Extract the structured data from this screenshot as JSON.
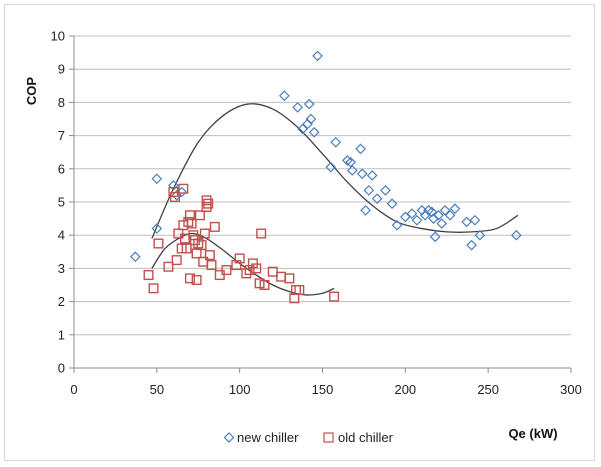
{
  "chart_data": {
    "type": "scatter",
    "title": "",
    "xlabel": "Qe (kW)",
    "ylabel": "COP",
    "xlim": [
      0,
      300
    ],
    "ylim": [
      0,
      10
    ],
    "x_ticks": [
      0,
      50,
      100,
      150,
      200,
      250,
      300
    ],
    "y_ticks": [
      0,
      1,
      2,
      3,
      4,
      5,
      6,
      7,
      8,
      9,
      10
    ],
    "grid": "horizontal",
    "legend_position": "bottom",
    "series": [
      {
        "name": "new chiller",
        "marker": "diamond",
        "color": "#4a7ebb",
        "points": [
          [
            37,
            3.35
          ],
          [
            50,
            4.2
          ],
          [
            50,
            5.7
          ],
          [
            60,
            5.5
          ],
          [
            62,
            5.2
          ],
          [
            65,
            5.3
          ],
          [
            127,
            8.2
          ],
          [
            135,
            7.85
          ],
          [
            138,
            7.2
          ],
          [
            141,
            7.35
          ],
          [
            142,
            7.95
          ],
          [
            143,
            7.5
          ],
          [
            145,
            7.1
          ],
          [
            147,
            9.4
          ],
          [
            155,
            6.05
          ],
          [
            158,
            6.8
          ],
          [
            165,
            6.25
          ],
          [
            167,
            6.2
          ],
          [
            168,
            5.95
          ],
          [
            173,
            6.6
          ],
          [
            174,
            5.85
          ],
          [
            176,
            4.75
          ],
          [
            178,
            5.35
          ],
          [
            180,
            5.8
          ],
          [
            183,
            5.1
          ],
          [
            188,
            5.35
          ],
          [
            192,
            4.95
          ],
          [
            195,
            4.3
          ],
          [
            200,
            4.55
          ],
          [
            204,
            4.65
          ],
          [
            207,
            4.45
          ],
          [
            210,
            4.75
          ],
          [
            212,
            4.6
          ],
          [
            214,
            4.75
          ],
          [
            216,
            4.7
          ],
          [
            217,
            4.5
          ],
          [
            218,
            3.95
          ],
          [
            220,
            4.6
          ],
          [
            222,
            4.35
          ],
          [
            224,
            4.75
          ],
          [
            227,
            4.6
          ],
          [
            230,
            4.8
          ],
          [
            237,
            4.4
          ],
          [
            240,
            3.7
          ],
          [
            242,
            4.45
          ],
          [
            245,
            4.0
          ],
          [
            267,
            4.0
          ]
        ]
      },
      {
        "name": "old chiller",
        "marker": "square",
        "color": "#c0504d",
        "points": [
          [
            45,
            2.8
          ],
          [
            48,
            2.4
          ],
          [
            51,
            3.75
          ],
          [
            57,
            3.05
          ],
          [
            60,
            5.3
          ],
          [
            61,
            5.15
          ],
          [
            62,
            3.25
          ],
          [
            63,
            4.05
          ],
          [
            65,
            3.6
          ],
          [
            66,
            5.4
          ],
          [
            67,
            3.9
          ],
          [
            68,
            3.6
          ],
          [
            69,
            4.4
          ],
          [
            70,
            4.6
          ],
          [
            70,
            2.7
          ],
          [
            71,
            4.35
          ],
          [
            72,
            4.0
          ],
          [
            73,
            3.85
          ],
          [
            74,
            3.45
          ],
          [
            75,
            3.75
          ],
          [
            76,
            4.6
          ],
          [
            77,
            3.7
          ],
          [
            78,
            3.2
          ],
          [
            79,
            4.05
          ],
          [
            80,
            5.05
          ],
          [
            80,
            4.85
          ],
          [
            81,
            4.95
          ],
          [
            82,
            3.4
          ],
          [
            83,
            3.1
          ],
          [
            85,
            4.25
          ],
          [
            88,
            2.8
          ],
          [
            92,
            2.95
          ],
          [
            98,
            3.1
          ],
          [
            100,
            3.3
          ],
          [
            104,
            2.85
          ],
          [
            106,
            2.95
          ],
          [
            108,
            3.15
          ],
          [
            110,
            3.0
          ],
          [
            112,
            2.55
          ],
          [
            113,
            4.05
          ],
          [
            115,
            2.5
          ],
          [
            120,
            2.9
          ],
          [
            125,
            2.75
          ],
          [
            130,
            2.7
          ],
          [
            133,
            2.1
          ],
          [
            134,
            2.35
          ],
          [
            136,
            2.35
          ],
          [
            157,
            2.15
          ],
          [
            74,
            2.65
          ],
          [
            66,
            4.3
          ]
        ]
      }
    ],
    "trendlines": [
      {
        "series": "new chiller",
        "points": [
          [
            47,
            3.9
          ],
          [
            60,
            5.4
          ],
          [
            75,
            6.8
          ],
          [
            90,
            7.6
          ],
          [
            105,
            7.95
          ],
          [
            120,
            7.8
          ],
          [
            135,
            7.25
          ],
          [
            150,
            6.45
          ],
          [
            165,
            5.6
          ],
          [
            180,
            4.9
          ],
          [
            195,
            4.4
          ],
          [
            210,
            4.2
          ],
          [
            225,
            4.1
          ],
          [
            240,
            4.1
          ],
          [
            255,
            4.2
          ],
          [
            268,
            4.6
          ]
        ]
      },
      {
        "series": "old chiller",
        "points": [
          [
            47,
            3.0
          ],
          [
            55,
            3.6
          ],
          [
            65,
            3.95
          ],
          [
            72,
            4.05
          ],
          [
            80,
            3.9
          ],
          [
            90,
            3.55
          ],
          [
            100,
            3.15
          ],
          [
            110,
            2.8
          ],
          [
            120,
            2.5
          ],
          [
            130,
            2.3
          ],
          [
            140,
            2.2
          ],
          [
            150,
            2.25
          ],
          [
            157,
            2.4
          ]
        ]
      }
    ]
  }
}
